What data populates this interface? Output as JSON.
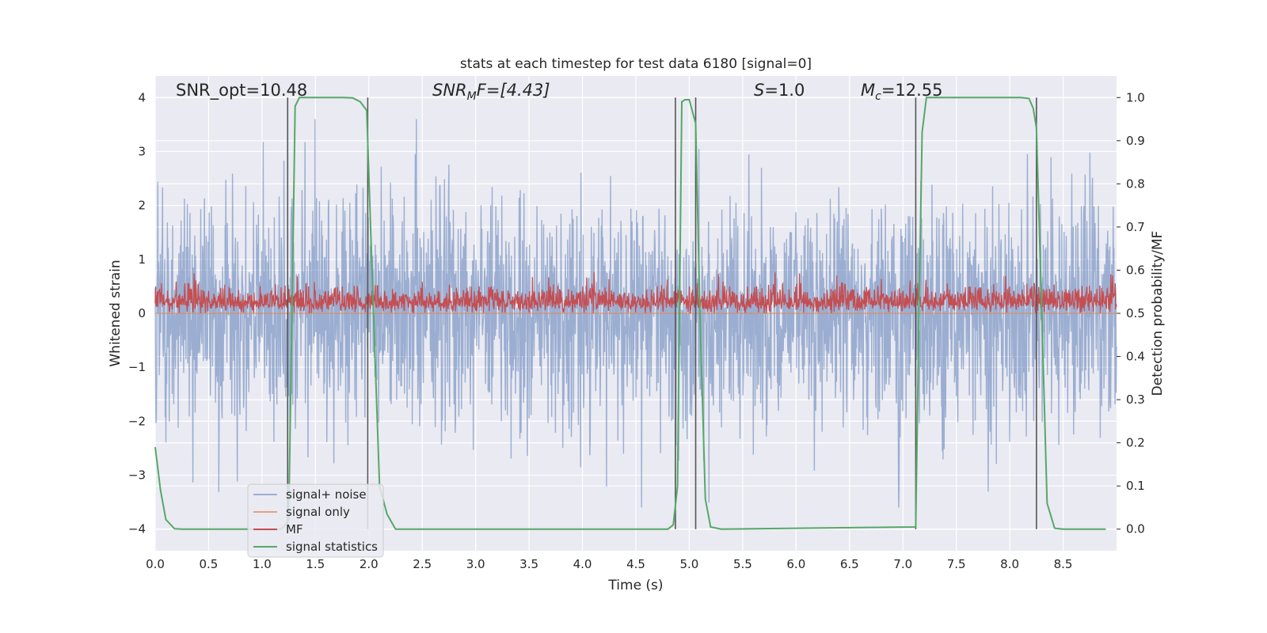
{
  "chart_data": {
    "type": "line",
    "title": "stats at each timestep for test data 6180 [signal=0]",
    "xlabel": "Time (s)",
    "ylabel": "Whitened strain",
    "ylabel_right": "Detection probability/MF",
    "xlim": [
      0.0,
      9.0
    ],
    "ylim": [
      -4.4,
      4.4
    ],
    "ylim_right": [
      -0.05,
      1.05
    ],
    "x_ticks": [
      "0.0",
      "0.5",
      "1.0",
      "1.5",
      "2.0",
      "2.5",
      "3.0",
      "3.5",
      "4.0",
      "4.5",
      "5.0",
      "5.5",
      "6.0",
      "6.5",
      "7.0",
      "7.5",
      "8.0",
      "8.5"
    ],
    "y_ticks": [
      "4",
      "3",
      "2",
      "1",
      "0",
      "−1",
      "−2",
      "−3",
      "−4"
    ],
    "y_ticks_right": [
      "1.0",
      "0.9",
      "0.8",
      "0.7",
      "0.6",
      "0.5",
      "0.4",
      "0.3",
      "0.2",
      "0.1",
      "0.0"
    ],
    "grid": true,
    "legend_position": "lower-left",
    "annotations": [
      {
        "text": "SNR_opt=10.48",
        "x": 0.2,
        "y": 4.0
      },
      {
        "text_main": "SNR",
        "text_sub": "M",
        "text_tail": "F=[4.43]",
        "x": 2.6,
        "y": 4.0
      },
      {
        "text_main": "S",
        "text_tail": "=1.0",
        "x": 5.6,
        "y": 4.0
      },
      {
        "text_main": "M",
        "text_sub": "c",
        "text_tail": "=12.55",
        "x": 6.6,
        "y": 4.0
      }
    ],
    "vertical_lines_x": [
      1.24,
      1.99,
      4.87,
      5.06,
      7.12,
      8.25
    ],
    "series": [
      {
        "name": "signal+ noise",
        "color": "#4c72b0",
        "style": "dense noise, approx N(0,1), range about -3.6 to 3.6",
        "envelope": {
          "typical_abs": 1.6,
          "peak_abs": 3.6
        }
      },
      {
        "name": "signal only",
        "color": "#dd8452",
        "x": [
          0.0,
          9.0
        ],
        "y": [
          0.0,
          0.0
        ]
      },
      {
        "name": "MF",
        "color": "#c44e52",
        "style": "noisy band on right axis around 0.52, range about 0.50 to 0.60"
      },
      {
        "name": "signal statistics",
        "color": "#55a868",
        "x": [
          0.0,
          0.05,
          0.1,
          0.18,
          0.25,
          1.18,
          1.25,
          1.28,
          1.31,
          1.35,
          1.5,
          1.75,
          1.85,
          1.92,
          1.98,
          2.03,
          2.1,
          2.17,
          2.25,
          4.8,
          4.85,
          4.89,
          4.93,
          4.96,
          5.0,
          5.06,
          5.1,
          5.15,
          5.2,
          5.3,
          7.12,
          7.15,
          7.18,
          7.22,
          7.3,
          8.1,
          8.18,
          8.22,
          8.25,
          8.3,
          8.35,
          8.42,
          8.5,
          8.9
        ],
        "y": [
          0.19,
          0.09,
          0.022,
          0.001,
          0.0,
          0.0,
          0.02,
          0.5,
          0.98,
          1.0,
          1.0,
          1.0,
          0.999,
          0.99,
          0.97,
          0.6,
          0.1,
          0.035,
          0.0,
          0.0,
          0.01,
          0.1,
          0.99,
          0.995,
          0.995,
          0.94,
          0.5,
          0.07,
          0.005,
          0.0,
          0.005,
          0.5,
          0.92,
          1.0,
          1.0,
          1.0,
          0.998,
          0.975,
          0.93,
          0.5,
          0.06,
          0.002,
          0.0,
          0.0
        ]
      }
    ]
  }
}
